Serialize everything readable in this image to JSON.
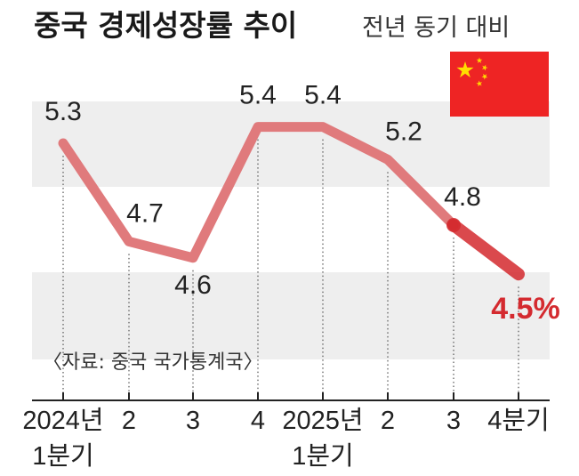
{
  "title": "중국 경제성장률 추이",
  "subtitle": "전년 동기 대비",
  "source": "〈자료: 중국 국가통계국〉",
  "flag_icon": "china-flag-icon",
  "colors": {
    "line": "#e07a7c",
    "line_emphasis": "#d42a2f",
    "band": "#eeeeee",
    "flag_red": "#ee2424",
    "flag_star": "#ffde00"
  },
  "chart_data": {
    "type": "line",
    "title": "중국 경제성장률 추이",
    "subtitle": "전년 동기 대비",
    "categories": [
      "2024년 1분기",
      "2",
      "3",
      "4",
      "2025년 1분기",
      "2",
      "3",
      "4분기"
    ],
    "tick_labels": [
      [
        "2024년",
        "1분기"
      ],
      [
        "2"
      ],
      [
        "3"
      ],
      [
        "4"
      ],
      [
        "2025년",
        "1분기"
      ],
      [
        "2"
      ],
      [
        "3"
      ],
      [
        "4분기"
      ]
    ],
    "values": [
      5.3,
      4.7,
      4.6,
      5.4,
      5.4,
      5.2,
      4.8,
      4.5
    ],
    "value_labels": [
      "5.3",
      "4.7",
      "4.6",
      "5.4",
      "5.4",
      "5.2",
      "4.8",
      "4.5%"
    ],
    "ylim": [
      4.3,
      5.55
    ],
    "unit": "%",
    "grid": false,
    "legend": "none"
  }
}
